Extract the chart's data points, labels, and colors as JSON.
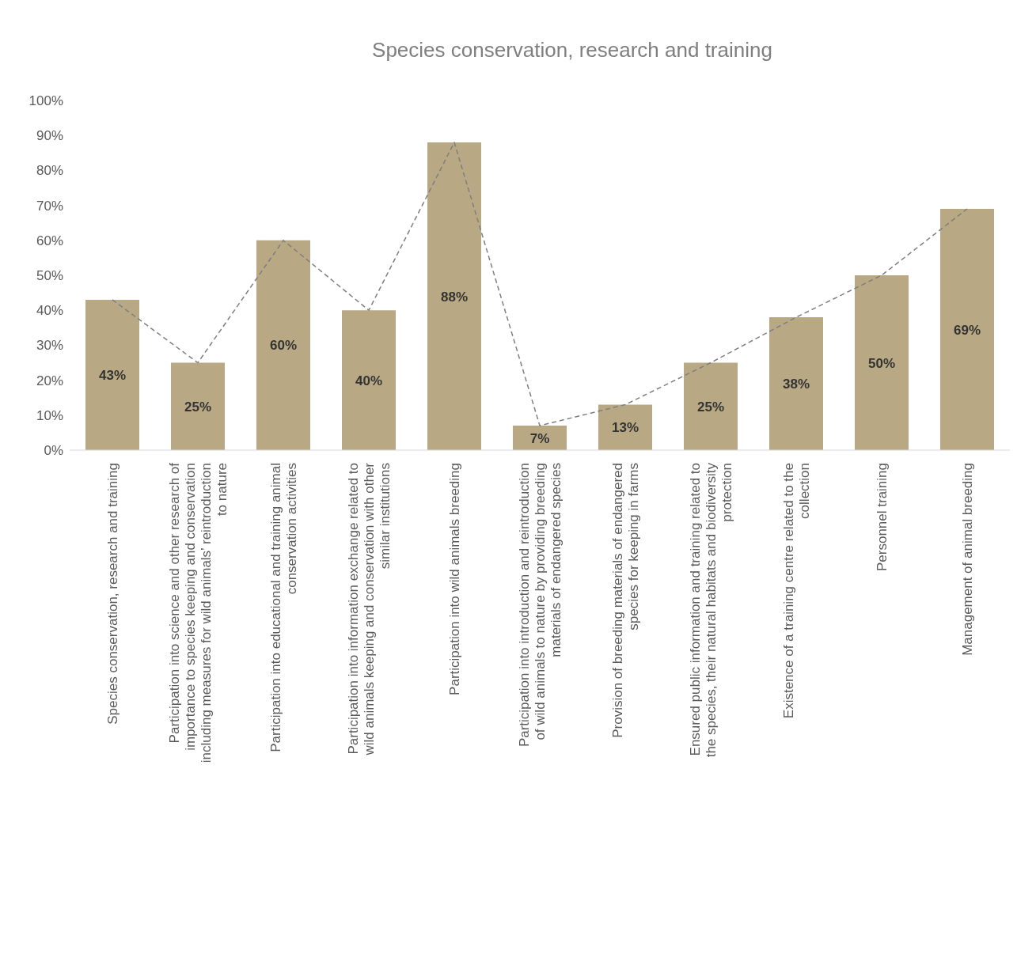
{
  "chart_data": {
    "type": "bar",
    "title": "Species conservation, research and training",
    "categories": [
      "Species conservation, research and training",
      "Participation into science and other research of importance to species keeping and conservation including measures for wild animals’ reintroduction to nature",
      "Participation into educational and training animal conservation activities",
      "Participation into information exchange related to wild animals keeping and conservation with other similar institutions",
      "Participation into wild animals breeding",
      "Participation into introduction and reintroduction of wild animals to nature by providing breeding materials of endangered species",
      "Provision of breeding materials of endangered species for keeping in farms",
      "Ensured public information and training related to the species, their natural habitats and biodiversity protection",
      "Existence of a training centre related to the collection",
      "Personnel training",
      "Management of animal breeding"
    ],
    "series": [
      {
        "type": "line",
        "color": "#7f7f7f",
        "line_style": "dashed",
        "values": [
          43,
          25,
          60,
          40,
          88,
          7,
          13,
          25,
          38,
          50,
          69
        ]
      },
      {
        "color": "#b8a984",
        "values": [
          43,
          25,
          60,
          40,
          88,
          7,
          13,
          25,
          38,
          50,
          69
        ],
        "value_labels": [
          "43%",
          "25%",
          "60%",
          "40%",
          "88%",
          "7%",
          "13%",
          "25%",
          "38%",
          "50%",
          "69%"
        ]
      }
    ],
    "ylim": [
      0,
      100
    ],
    "yticks": [
      {
        "value": 0,
        "label": "0%"
      },
      {
        "value": 10,
        "label": "10%"
      },
      {
        "value": 20,
        "label": "20%"
      },
      {
        "value": 30,
        "label": "30%"
      },
      {
        "value": 40,
        "label": "40%"
      },
      {
        "value": 50,
        "label": "50%"
      },
      {
        "value": 60,
        "label": "60%"
      },
      {
        "value": 70,
        "label": "70%"
      },
      {
        "value": 80,
        "label": "80%"
      },
      {
        "value": 90,
        "label": "90%"
      },
      {
        "value": 100,
        "label": "100%"
      }
    ],
    "grid": false,
    "marker": "none"
  }
}
